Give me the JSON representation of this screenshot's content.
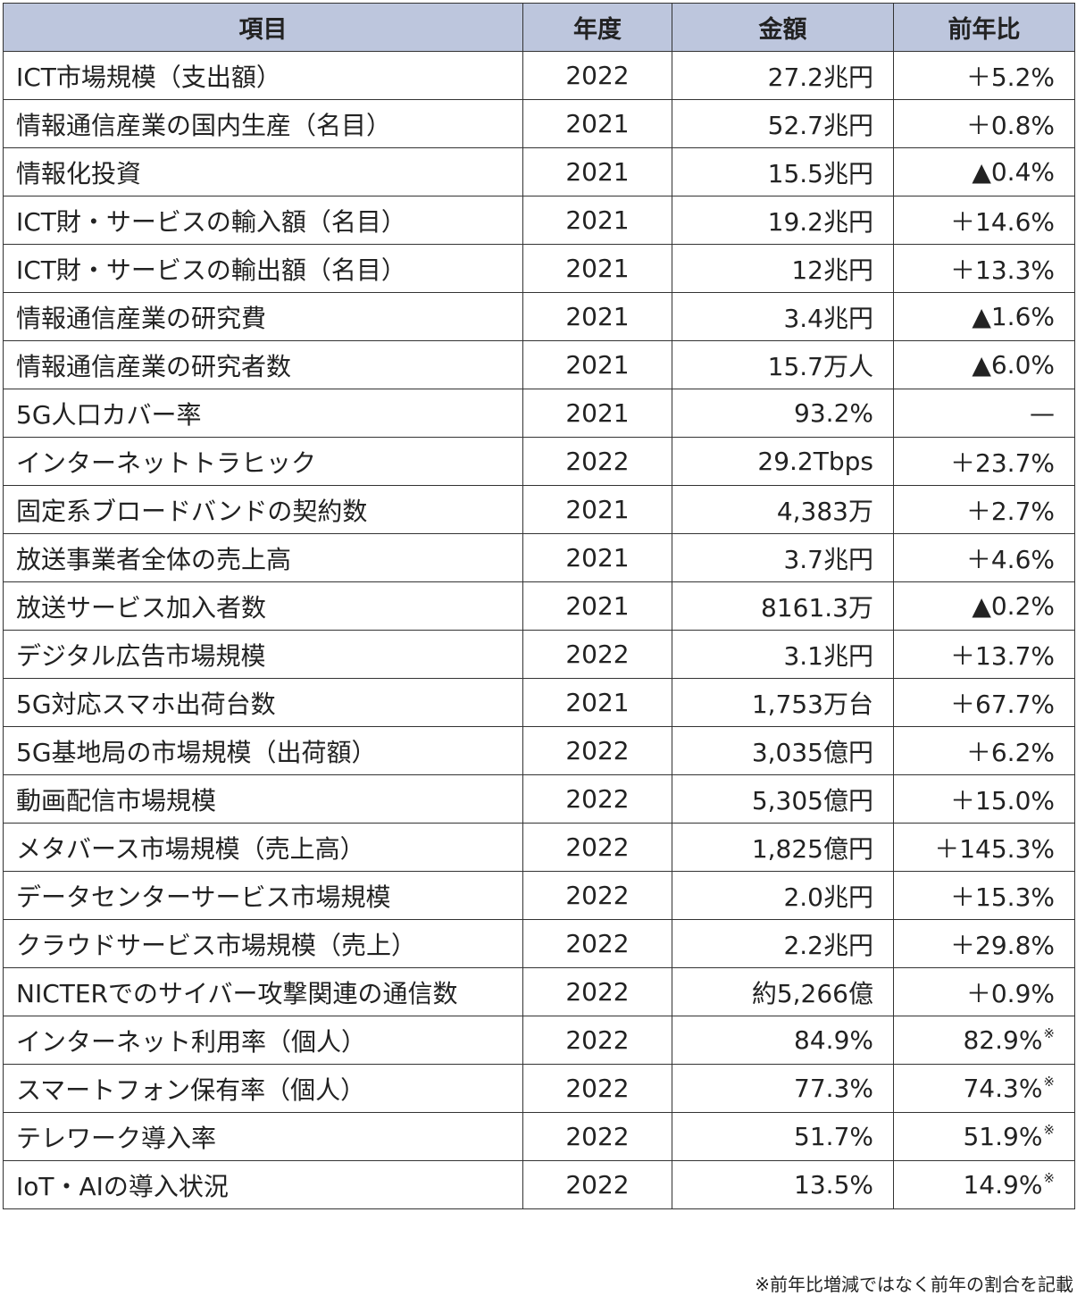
{
  "header": {
    "item": "項目",
    "year": "年度",
    "amount": "金額",
    "change": "前年比"
  },
  "rows": [
    {
      "item": "ICT市場規模（支出額）",
      "year": "2022",
      "amount": "27.2兆円",
      "change": "＋5.2%",
      "mark": ""
    },
    {
      "item": "情報通信産業の国内生産（名目）",
      "year": "2021",
      "amount": "52.7兆円",
      "change": "＋0.8%",
      "mark": ""
    },
    {
      "item": "情報化投資",
      "year": "2021",
      "amount": "15.5兆円",
      "change": "▲0.4%",
      "mark": ""
    },
    {
      "item": "ICT財・サービスの輸入額（名目）",
      "year": "2021",
      "amount": "19.2兆円",
      "change": "＋14.6%",
      "mark": ""
    },
    {
      "item": "ICT財・サービスの輸出額（名目）",
      "year": "2021",
      "amount": "12兆円",
      "change": "＋13.3%",
      "mark": ""
    },
    {
      "item": "情報通信産業の研究費",
      "year": "2021",
      "amount": "3.4兆円",
      "change": "▲1.6%",
      "mark": ""
    },
    {
      "item": "情報通信産業の研究者数",
      "year": "2021",
      "amount": "15.7万人",
      "change": "▲6.0%",
      "mark": ""
    },
    {
      "item": "5G人口カバー率",
      "year": "2021",
      "amount": "93.2%",
      "change": "—",
      "mark": ""
    },
    {
      "item": "インターネットトラヒック",
      "year": "2022",
      "amount": "29.2Tbps",
      "change": "＋23.7%",
      "mark": ""
    },
    {
      "item": "固定系ブロードバンドの契約数",
      "year": "2021",
      "amount": "4,383万",
      "change": "＋2.7%",
      "mark": ""
    },
    {
      "item": "放送事業者全体の売上高",
      "year": "2021",
      "amount": "3.7兆円",
      "change": "＋4.6%",
      "mark": ""
    },
    {
      "item": "放送サービス加入者数",
      "year": "2021",
      "amount": "8161.3万",
      "change": "▲0.2%",
      "mark": ""
    },
    {
      "item": "デジタル広告市場規模",
      "year": "2022",
      "amount": "3.1兆円",
      "change": "＋13.7%",
      "mark": ""
    },
    {
      "item": "5G対応スマホ出荷台数",
      "year": "2021",
      "amount": "1,753万台",
      "change": "＋67.7%",
      "mark": ""
    },
    {
      "item": "5G基地局の市場規模（出荷額）",
      "year": "2022",
      "amount": "3,035億円",
      "change": "＋6.2%",
      "mark": ""
    },
    {
      "item": "動画配信市場規模",
      "year": "2022",
      "amount": "5,305億円",
      "change": "＋15.0%",
      "mark": ""
    },
    {
      "item": "メタバース市場規模（売上高）",
      "year": "2022",
      "amount": "1,825億円",
      "change": "＋145.3%",
      "mark": ""
    },
    {
      "item": "データセンターサービス市場規模",
      "year": "2022",
      "amount": "2.0兆円",
      "change": "＋15.3%",
      "mark": ""
    },
    {
      "item": "クラウドサービス市場規模（売上）",
      "year": "2022",
      "amount": "2.2兆円",
      "change": "＋29.8%",
      "mark": ""
    },
    {
      "item": "NICTERでのサイバー攻撃関連の通信数",
      "year": "2022",
      "amount": "約5,266億",
      "change": "＋0.9%",
      "mark": ""
    },
    {
      "item": "インターネット利用率（個人）",
      "year": "2022",
      "amount": "84.9%",
      "change": "82.9%",
      "mark": "※"
    },
    {
      "item": "スマートフォン保有率（個人）",
      "year": "2022",
      "amount": "77.3%",
      "change": "74.3%",
      "mark": "※"
    },
    {
      "item": "テレワーク導入率",
      "year": "2022",
      "amount": "51.7%",
      "change": "51.9%",
      "mark": "※"
    },
    {
      "item": "IoT・AIの導入状況",
      "year": "2022",
      "amount": "13.5%",
      "change": "14.9%",
      "mark": "※"
    }
  ],
  "footnote": "※前年比増減ではなく前年の割合を記載"
}
